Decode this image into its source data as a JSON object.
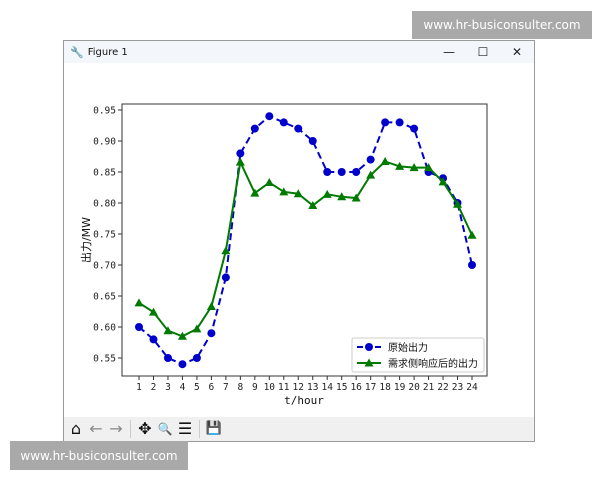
{
  "window": {
    "title": "Figure 1",
    "minimize": "—",
    "maximize": "☐",
    "close": "✕"
  },
  "toolbar": {
    "home": "⌂",
    "back": "←",
    "forward": "→",
    "pan": "✥",
    "zoom": "🔍",
    "configure": "☰",
    "save": "💾"
  },
  "watermarks": {
    "top": "www.hr-busiconsulter.com",
    "bottom": "www.hr-busiconsulter.com"
  },
  "chart_data": {
    "type": "line",
    "title": "",
    "xlabel": "t/hour",
    "ylabel": "出力/MW",
    "x": [
      1,
      2,
      3,
      4,
      5,
      6,
      7,
      8,
      9,
      10,
      11,
      12,
      13,
      14,
      15,
      16,
      17,
      18,
      19,
      20,
      21,
      22,
      23,
      24
    ],
    "xticks": [
      "1",
      "2",
      "3",
      "4",
      "5",
      "6",
      "7",
      "8",
      "9",
      "10",
      "11",
      "12",
      "13",
      "14",
      "15",
      "16",
      "17",
      "18",
      "19",
      "20",
      "21",
      "22",
      "23",
      "24"
    ],
    "yticks": [
      "0.55",
      "0.60",
      "0.65",
      "0.70",
      "0.75",
      "0.80",
      "0.85",
      "0.90",
      "0.95"
    ],
    "ylim": [
      0.5235,
      0.9585
    ],
    "xlim": [
      -0.1,
      25.1
    ],
    "legend_position": "lower-right",
    "series": [
      {
        "name": "原始出力",
        "color": "#0000cc",
        "style": "dashed",
        "marker": "circle",
        "values": [
          0.6,
          0.58,
          0.55,
          0.54,
          0.55,
          0.59,
          0.68,
          0.88,
          0.92,
          0.94,
          0.93,
          0.92,
          0.9,
          0.85,
          0.85,
          0.85,
          0.87,
          0.93,
          0.93,
          0.92,
          0.85,
          0.84,
          0.8,
          0.7
        ]
      },
      {
        "name": "需求侧响应后的出力",
        "color": "#007a00",
        "style": "solid",
        "marker": "triangle",
        "values": [
          0.639,
          0.624,
          0.594,
          0.585,
          0.597,
          0.633,
          0.723,
          0.866,
          0.816,
          0.833,
          0.818,
          0.815,
          0.796,
          0.814,
          0.81,
          0.808,
          0.845,
          0.867,
          0.859,
          0.857,
          0.857,
          0.834,
          0.798,
          0.748
        ]
      }
    ]
  }
}
